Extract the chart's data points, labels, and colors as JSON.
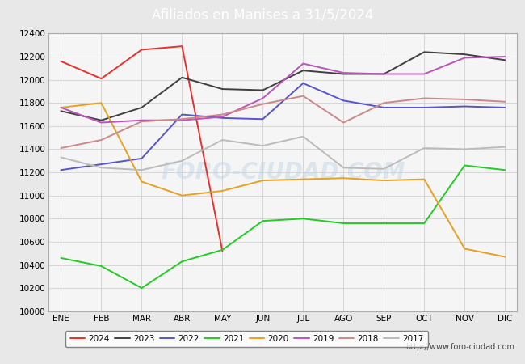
{
  "title": "Afiliados en Manises a 31/5/2024",
  "title_bg_color": "#4a8bc4",
  "title_text_color": "white",
  "ylim": [
    10000,
    12400
  ],
  "yticks": [
    10000,
    10200,
    10400,
    10600,
    10800,
    11000,
    11200,
    11400,
    11600,
    11800,
    12000,
    12200,
    12400
  ],
  "months": [
    "ENE",
    "FEB",
    "MAR",
    "ABR",
    "MAY",
    "JUN",
    "JUL",
    "AGO",
    "SEP",
    "OCT",
    "NOV",
    "DIC"
  ],
  "watermark": "FORO-CIUDAD.COM",
  "url": "http://www.foro-ciudad.com",
  "series": {
    "2024": {
      "color": "#e8312a",
      "data": [
        12160,
        12010,
        12260,
        12290,
        10520,
        null,
        null,
        null,
        null,
        null,
        null,
        null
      ]
    },
    "2023": {
      "color": "#404040",
      "data": [
        11730,
        11650,
        11760,
        12020,
        11920,
        11910,
        12080,
        12050,
        12050,
        12240,
        12220,
        12170
      ]
    },
    "2022": {
      "color": "#5555cc",
      "data": [
        11220,
        11270,
        11320,
        11700,
        11670,
        11660,
        11970,
        11820,
        11760,
        11760,
        11770,
        11760
      ]
    },
    "2021": {
      "color": "#22cc22",
      "data": [
        10460,
        10390,
        10200,
        10430,
        10530,
        10780,
        10800,
        10760,
        10760,
        10760,
        11260,
        11220
      ]
    },
    "2020": {
      "color": "#e8a020",
      "data": [
        11760,
        11800,
        11120,
        11000,
        11040,
        11130,
        11140,
        11150,
        11130,
        11140,
        10540,
        10470
      ]
    },
    "2019": {
      "color": "#bb55bb",
      "data": [
        11760,
        11630,
        11650,
        11650,
        11680,
        11840,
        12140,
        12060,
        12050,
        12050,
        12190,
        12200
      ]
    },
    "2018": {
      "color": "#cc8888",
      "data": [
        11410,
        11480,
        11640,
        11660,
        11700,
        11790,
        11860,
        11630,
        11800,
        11840,
        11830,
        11810
      ]
    },
    "2017": {
      "color": "#bbbbbb",
      "data": [
        11330,
        11240,
        11220,
        11300,
        11480,
        11430,
        11510,
        11240,
        11230,
        11410,
        11400,
        11420
      ]
    }
  },
  "legend_order": [
    "2024",
    "2023",
    "2022",
    "2021",
    "2020",
    "2019",
    "2018",
    "2017"
  ],
  "fig_bg_color": "#e8e8e8",
  "plot_bg_color": "#f5f5f5",
  "grid_color": "#d0d0d0",
  "sidebar_color": "#4a8bc4",
  "bottombar_color": "#4a8bc4"
}
